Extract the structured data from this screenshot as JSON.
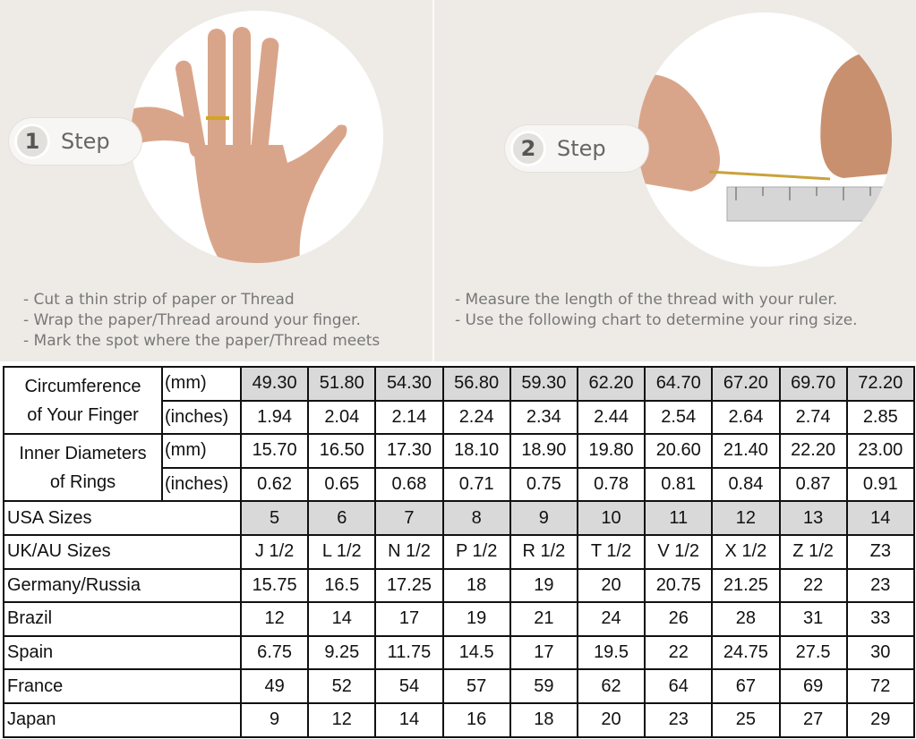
{
  "steps": [
    {
      "number": "1",
      "label": "Step",
      "instructions": [
        "- Cut a thin strip of paper or Thread",
        "- Wrap the paper/Thread around your finger.",
        "- Mark the spot where the paper/Thread meets"
      ]
    },
    {
      "number": "2",
      "label": "Step",
      "instructions": [
        "- Measure the length of the thread with your ruler.",
        "- Use the following chart to determine your ring size."
      ]
    }
  ],
  "table": {
    "circumference": {
      "label_line1": "Circumference",
      "label_line2": "of Your Finger",
      "mm_unit": "(mm)",
      "mm": [
        "49.30",
        "51.80",
        "54.30",
        "56.80",
        "59.30",
        "62.20",
        "64.70",
        "67.20",
        "69.70",
        "72.20"
      ],
      "in_unit": "(inches)",
      "inches": [
        "1.94",
        "2.04",
        "2.14",
        "2.24",
        "2.34",
        "2.44",
        "2.54",
        "2.64",
        "2.74",
        "2.85"
      ]
    },
    "diameter": {
      "label_line1": "Inner Diameters",
      "label_line2": "of Rings",
      "mm_unit": "(mm)",
      "mm": [
        "15.70",
        "16.50",
        "17.30",
        "18.10",
        "18.90",
        "19.80",
        "20.60",
        "21.40",
        "22.20",
        "23.00"
      ],
      "in_unit": "(inches)",
      "inches": [
        "0.62",
        "0.65",
        "0.68",
        "0.71",
        "0.75",
        "0.78",
        "0.81",
        "0.84",
        "0.87",
        "0.91"
      ]
    },
    "countries": [
      {
        "name": "USA Sizes",
        "values": [
          "5",
          "6",
          "7",
          "8",
          "9",
          "10",
          "11",
          "12",
          "13",
          "14"
        ]
      },
      {
        "name": "UK/AU Sizes",
        "values": [
          "J 1/2",
          "L 1/2",
          "N 1/2",
          "P 1/2",
          "R 1/2",
          "T 1/2",
          "V 1/2",
          "X 1/2",
          "Z 1/2",
          "Z3"
        ]
      },
      {
        "name": "Germany/Russia",
        "values": [
          "15.75",
          "16.5",
          "17.25",
          "18",
          "19",
          "20",
          "20.75",
          "21.25",
          "22",
          "23"
        ]
      },
      {
        "name": "Brazil",
        "values": [
          "12",
          "14",
          "17",
          "19",
          "21",
          "24",
          "26",
          "28",
          "31",
          "33"
        ]
      },
      {
        "name": "Spain",
        "values": [
          "6.75",
          "9.25",
          "11.75",
          "14.5",
          "17",
          "19.5",
          "22",
          "24.75",
          "27.5",
          "30"
        ]
      },
      {
        "name": "France",
        "values": [
          "49",
          "52",
          "54",
          "57",
          "59",
          "62",
          "64",
          "67",
          "69",
          "72"
        ]
      },
      {
        "name": "Japan",
        "values": [
          "9",
          "12",
          "14",
          "16",
          "18",
          "20",
          "23",
          "25",
          "27",
          "29"
        ]
      }
    ]
  },
  "colors": {
    "shade": "#d9d9d9",
    "background": "#eeebe7"
  }
}
